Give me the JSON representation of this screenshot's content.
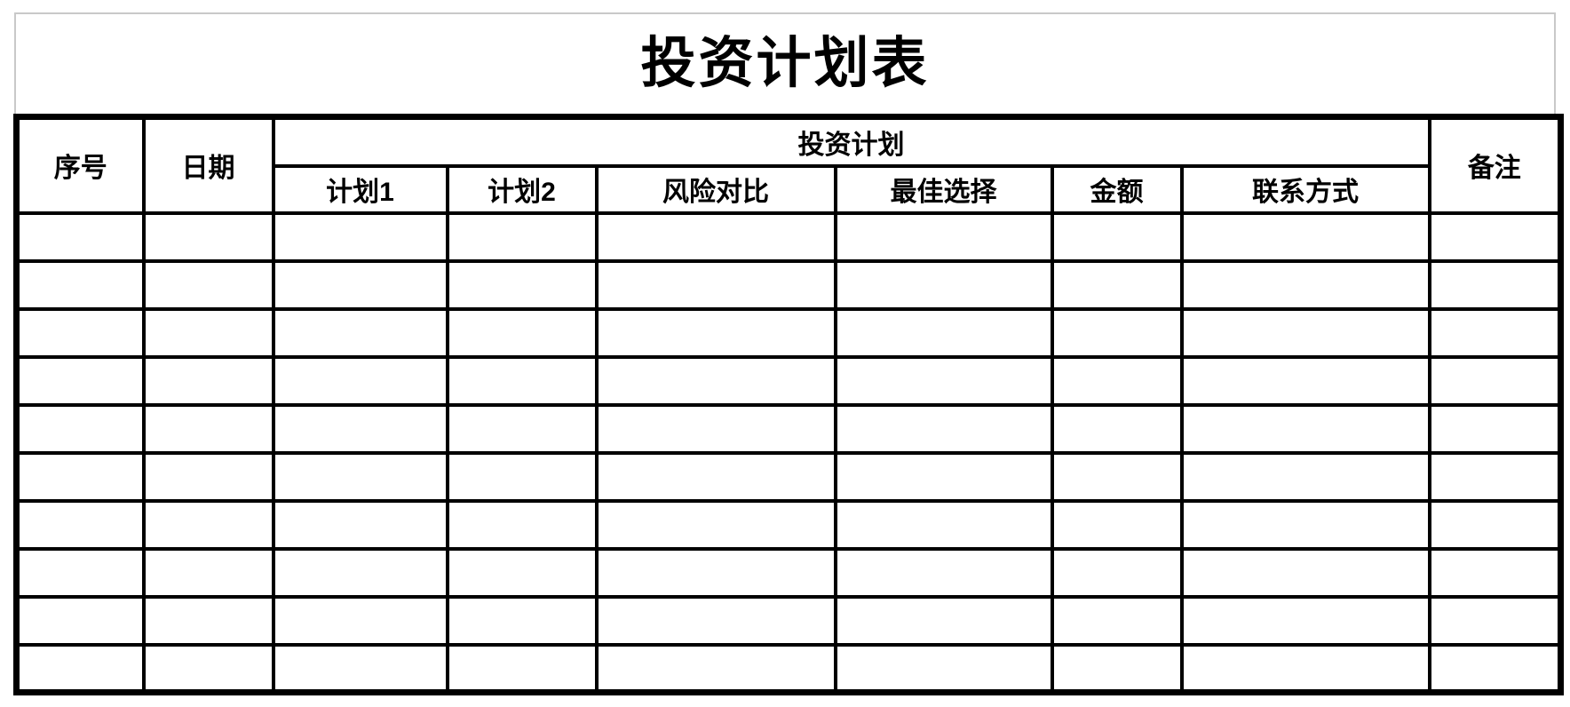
{
  "page_title": "投资计划表",
  "colors": {
    "background": "#ffffff",
    "grid_line": "#000000",
    "text": "#000000",
    "title_frame": "#c9c9c9"
  },
  "table": {
    "group_header": "投资计划",
    "columns": {
      "serial": "序号",
      "date": "日期",
      "plan1": "计划1",
      "plan2": "计划2",
      "risk_comparison": "风险对比",
      "best_choice": "最佳选择",
      "amount": "金额",
      "contact": "联系方式",
      "remarks": "备注"
    },
    "empty_row_count": 10,
    "data_rows": [
      [
        "",
        "",
        "",
        "",
        "",
        "",
        "",
        "",
        ""
      ],
      [
        "",
        "",
        "",
        "",
        "",
        "",
        "",
        "",
        ""
      ],
      [
        "",
        "",
        "",
        "",
        "",
        "",
        "",
        "",
        ""
      ],
      [
        "",
        "",
        "",
        "",
        "",
        "",
        "",
        "",
        ""
      ],
      [
        "",
        "",
        "",
        "",
        "",
        "",
        "",
        "",
        ""
      ],
      [
        "",
        "",
        "",
        "",
        "",
        "",
        "",
        "",
        ""
      ],
      [
        "",
        "",
        "",
        "",
        "",
        "",
        "",
        "",
        ""
      ],
      [
        "",
        "",
        "",
        "",
        "",
        "",
        "",
        "",
        ""
      ],
      [
        "",
        "",
        "",
        "",
        "",
        "",
        "",
        "",
        ""
      ],
      [
        "",
        "",
        "",
        "",
        "",
        "",
        "",
        "",
        ""
      ]
    ]
  }
}
